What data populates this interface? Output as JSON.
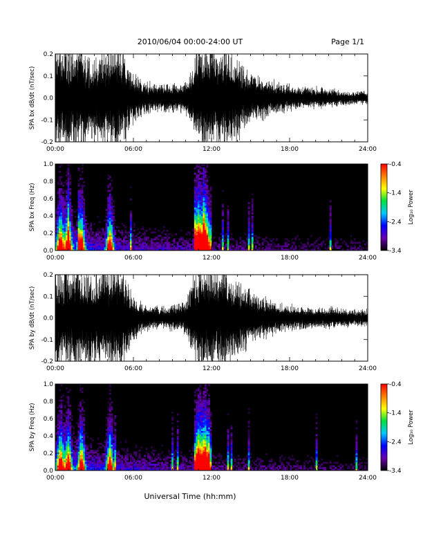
{
  "header": {
    "title": "2010/06/04  00:00-24:00 UT",
    "page": "Page 1/1"
  },
  "xlabel": "Universal Time (hh:mm)",
  "colorbar": {
    "label": "Log₁₀ Power",
    "ticks": [
      "-0.4",
      "-1.4",
      "-2.4",
      "-3.4"
    ],
    "range": [
      -3.4,
      -0.4
    ],
    "colors": [
      "#000000",
      "#6a00b0",
      "#0000ff",
      "#00c8ff",
      "#00e040",
      "#ffff00",
      "#ff8000",
      "#ff0000"
    ]
  },
  "chart_data": [
    {
      "type": "line",
      "ylabel": "SPA bx dB/dt (nT/sec)",
      "xlim": [
        0,
        24
      ],
      "ylim": [
        -0.2,
        0.2
      ],
      "x_ticks": [
        "00:00",
        "06:00",
        "12:00",
        "18:00",
        "24:00"
      ],
      "y_ticks": [
        "0.2",
        "0.1",
        "0.0",
        "-0.1",
        "-0.2"
      ],
      "envelope": {
        "x_hours": [
          0,
          1,
          2,
          3,
          4,
          5,
          6,
          7,
          8,
          9,
          10,
          10.5,
          11,
          11.5,
          12,
          13,
          14,
          15,
          16,
          17,
          18,
          19,
          20,
          21,
          22,
          23,
          24
        ],
        "amplitude": [
          0.2,
          0.2,
          0.2,
          0.15,
          0.2,
          0.2,
          0.09,
          0.06,
          0.05,
          0.05,
          0.06,
          0.12,
          0.2,
          0.2,
          0.2,
          0.2,
          0.15,
          0.1,
          0.08,
          0.06,
          0.05,
          0.04,
          0.04,
          0.035,
          0.03,
          0.025,
          0.025
        ]
      }
    },
    {
      "type": "heatmap",
      "ylabel": "SPA bx Freq (Hz)",
      "xlim": [
        0,
        24
      ],
      "ylim": [
        0,
        1
      ],
      "x_ticks": [
        "00:00",
        "06:00",
        "12:00",
        "18:00",
        "24:00"
      ],
      "y_ticks": [
        "1.0",
        "0.8",
        "0.6",
        "0.4",
        "0.2",
        "0.0"
      ],
      "hotspots_hours": [
        0.4,
        1.0,
        2.0,
        4.2,
        11.0,
        11.5
      ]
    },
    {
      "type": "line",
      "ylabel": "SPA by dB/dt (nT/sec)",
      "xlim": [
        0,
        24
      ],
      "ylim": [
        -0.2,
        0.2
      ],
      "x_ticks": [
        "00:00",
        "06:00",
        "12:00",
        "18:00",
        "24:00"
      ],
      "y_ticks": [
        "0.2",
        "0.1",
        "0.0",
        "-0.1",
        "-0.2"
      ],
      "envelope": {
        "x_hours": [
          0,
          1,
          2,
          3,
          4,
          5,
          6,
          7,
          8,
          9,
          10,
          10.5,
          11,
          11.5,
          12,
          13,
          14,
          15,
          16,
          17,
          18,
          19,
          20,
          21,
          22,
          23,
          24
        ],
        "amplitude": [
          0.2,
          0.2,
          0.2,
          0.18,
          0.2,
          0.2,
          0.08,
          0.05,
          0.04,
          0.05,
          0.06,
          0.15,
          0.2,
          0.2,
          0.2,
          0.2,
          0.15,
          0.1,
          0.08,
          0.06,
          0.05,
          0.045,
          0.04,
          0.04,
          0.035,
          0.03,
          0.03
        ]
      }
    },
    {
      "type": "heatmap",
      "ylabel": "SPA by Freq (Hz)",
      "xlim": [
        0,
        24
      ],
      "ylim": [
        0,
        1
      ],
      "x_ticks": [
        "00:00",
        "06:00",
        "12:00",
        "18:00",
        "24:00"
      ],
      "y_ticks": [
        "1.0",
        "0.8",
        "0.6",
        "0.4",
        "0.2",
        "0.0"
      ],
      "hotspots_hours": [
        0.4,
        1.0,
        2.0,
        4.2,
        11.0,
        11.5
      ]
    }
  ]
}
